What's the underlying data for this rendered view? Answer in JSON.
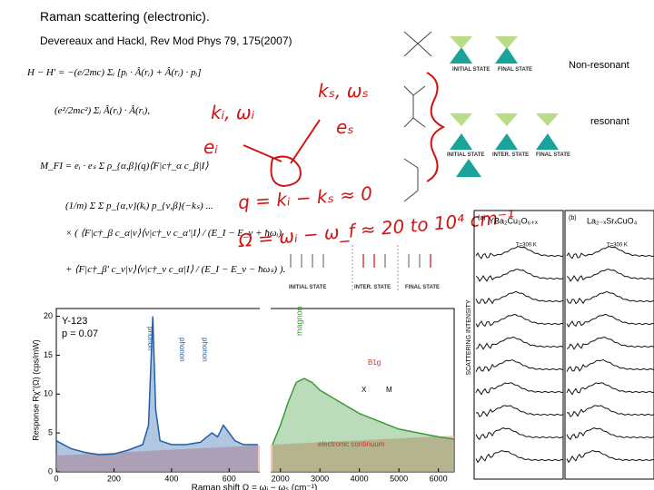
{
  "header": {
    "title": "Raman scattering (electronic).",
    "citation": "Devereaux and Hackl, Rev Mod Phys 79, 175(2007)"
  },
  "labels": {
    "non_resonant": "Non-resonant",
    "resonant": "resonant"
  },
  "equations": [
    "H − H' = −(e/2mc) Σᵢ [pᵢ · Â(rᵢ) + Â(rᵢ) · pᵢ]",
    "(e²/2mc²) Σᵢ Â(rᵢ) · Â(rᵢ),",
    "M_FI = eᵢ · eₛ Σ ρ_{α,β}(q)⟨F|c†_α c_β|I⟩",
    "(1/m) Σ Σ p_{α,ν}(kᵢ) p_{ν,β}(−kₛ) ...",
    "× ( ⟨F|c†_β c_α|ν⟩⟨ν|c†_ν c_α'|I⟩ / (E_I − E_ν + ħωᵢ)",
    "+ ⟨F|c†_β' c_ν|ν⟩⟨ν|c†_ν c_α|I⟩ / (E_I − E_ν − ħωₛ) )."
  ],
  "handwritten": [
    "kₛ, ωₛ",
    "kᵢ, ωᵢ",
    "eₛ",
    "eᵢ",
    "q = kᵢ − kₛ ≈ 0",
    "Ω = ωᵢ − ω_f ≈ 20 to 10⁴ cm⁻¹"
  ],
  "diagram_labels": {
    "top": [
      "INITIAL STATE",
      "FINAL STATE"
    ],
    "bottom": [
      "INITIAL STATE",
      "INTER. STATE",
      "FINAL STATE"
    ],
    "spin": [
      "INITIAL STATE",
      "INTER. STATE",
      "FINAL STATE"
    ]
  },
  "spectra_panel": {
    "panels": [
      "(a)",
      "(b)"
    ],
    "materials": [
      "YBa₂Cu₃O₆₊ₓ",
      "La₂₋ₓSrₓCuO₄"
    ],
    "ylabel": "SCATTERING INTENSITY",
    "temperature": "T=300 K"
  },
  "chart_data": {
    "type": "line",
    "xlabel": "Raman shift Ω = ωᵢ − ωₛ (cm⁻¹)",
    "ylabel": "Response Rχ''(Ω) (cps/mW)",
    "annotations": [
      "Y-123",
      "p = 0.07",
      "phonon",
      "phonon",
      "phonon",
      "magnon",
      "electronic continuum",
      "B1g",
      "X",
      "M"
    ],
    "xlim": [
      0,
      700
    ],
    "xticks": [
      0,
      200,
      400,
      600
    ],
    "x2lim": [
      1800,
      6400
    ],
    "x2ticks": [
      2000,
      3000,
      4000,
      5000,
      6000
    ],
    "ylim": [
      0,
      21
    ],
    "yticks": [
      0,
      5,
      10,
      15,
      20
    ],
    "series": [
      {
        "color": "#1f5fa8",
        "x": [
          0,
          50,
          100,
          150,
          200,
          250,
          300,
          320,
          335,
          345,
          360,
          400,
          450,
          500,
          540,
          560,
          580,
          600,
          620,
          650,
          700
        ],
        "values": [
          4,
          3,
          2.5,
          2.2,
          2.3,
          2.8,
          3.5,
          6,
          20,
          8,
          4,
          3.5,
          3.5,
          3.8,
          5,
          4.5,
          6,
          5,
          4,
          3.5,
          3.5
        ]
      },
      {
        "color": "#3a9a3a",
        "axis": "x2",
        "x": [
          1800,
          2000,
          2200,
          2400,
          2600,
          2800,
          3000,
          3500,
          4000,
          4500,
          5000,
          5500,
          6000,
          6400
        ],
        "values": [
          3.5,
          6,
          9,
          11.5,
          12,
          11.5,
          10.5,
          9,
          7.5,
          6.5,
          5.5,
          5,
          4.5,
          4.2
        ]
      }
    ]
  }
}
